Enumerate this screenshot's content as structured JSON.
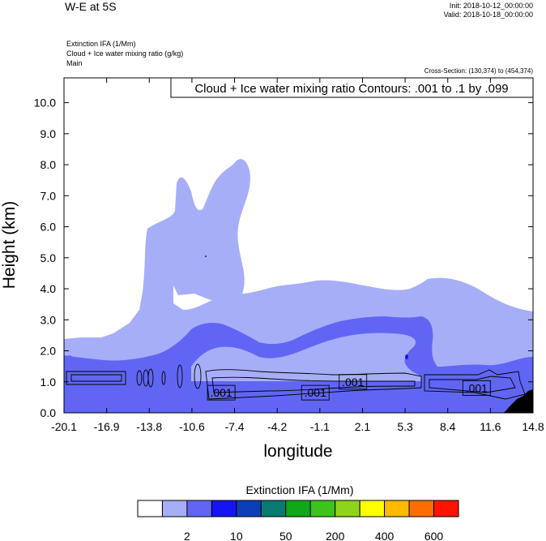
{
  "header": {
    "title": "W-E at 5S",
    "init": "Init: 2018-10-12_00:00:00",
    "valid": "Valid: 2018-10-18_00:00:00",
    "field_lines": [
      "Extinction IFA   (1/Mm)",
      "Cloud + Ice water mixing ratio   (g/kg)",
      "Main"
    ],
    "cross_section": "Cross-Section: (130,374) to (454,374)"
  },
  "chart_data": {
    "type": "area",
    "title": "W-E at 5S",
    "xlabel": "longitude",
    "ylabel": "Height (km)",
    "xlim": [
      -20.1,
      14.8
    ],
    "ylim": [
      0.0,
      10.8
    ],
    "x_ticks": [
      "-20.1",
      "-16.9",
      "-13.8",
      "-10.6",
      "-7.4",
      "-4.2",
      "-1.1",
      "2.1",
      "5.3",
      "8.4",
      "11.6",
      "14.8"
    ],
    "y_ticks": [
      "0.0",
      "1.0",
      "2.0",
      "3.0",
      "4.0",
      "5.0",
      "6.0",
      "7.0",
      "8.0",
      "9.0",
      "10.0"
    ],
    "contour_info": "Cloud + Ice water mixing ratio Contours: .001 to .1 by .099",
    "contour_labels": [
      {
        "text": ".001",
        "lon": -8.4,
        "height": 0.65
      },
      {
        "text": ".001",
        "lon": -1.4,
        "height": 0.65
      },
      {
        "text": ".001",
        "lon": 1.4,
        "height": 1.0
      },
      {
        "text": ".001",
        "lon": 10.6,
        "height": 0.8
      }
    ],
    "colorbar": {
      "title": "Extinction IFA  (1/Mm)",
      "colors": [
        "#ffffff",
        "#a7aef8",
        "#6066f3",
        "#1514f5",
        "#0b3fb8",
        "#087a72",
        "#10a818",
        "#3cc41c",
        "#8fd41c",
        "#ffff00",
        "#ffba00",
        "#ff6c00",
        "#ff1400"
      ],
      "tick_labels": [
        {
          "label": "2",
          "after_index": 1
        },
        {
          "label": "10",
          "after_index": 3
        },
        {
          "label": "50",
          "after_index": 5
        },
        {
          "label": "200",
          "after_index": 7
        },
        {
          "label": "400",
          "after_index": 9
        },
        {
          "label": "600",
          "after_index": 11
        }
      ]
    }
  }
}
